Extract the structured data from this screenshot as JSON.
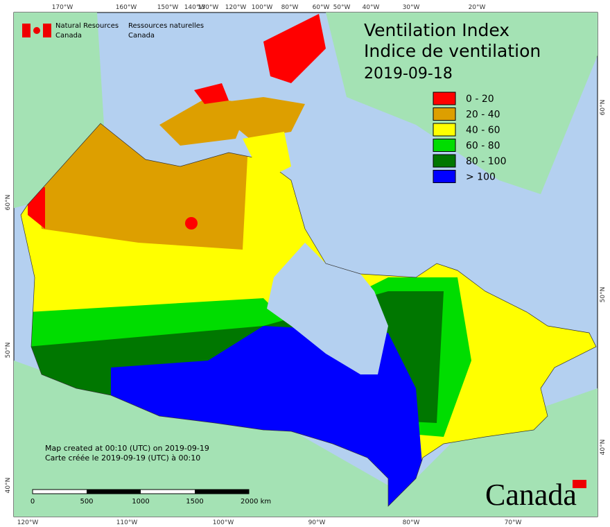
{
  "header": {
    "title": "Ventilation Index",
    "subtitle": "Indice de ventilation",
    "date": "2019-09-18"
  },
  "legend": [
    {
      "label": "0 - 20",
      "color": "#ff0000"
    },
    {
      "label": "20 - 40",
      "color": "#dd9f00"
    },
    {
      "label": "40 - 60",
      "color": "#ffff00"
    },
    {
      "label": "60 - 80",
      "color": "#00dd00"
    },
    {
      "label": "80 - 100",
      "color": "#007700"
    },
    {
      "label": "> 100",
      "color": "#0000ff"
    }
  ],
  "graticule": {
    "top": [
      "170°W",
      "160°W",
      "150°W",
      "140°W",
      "130°W",
      "120°W",
      "100°W",
      "80°W",
      "60°W",
      "50°W",
      "40°W",
      "30°W",
      "20°W"
    ],
    "bottom": [
      "120°W",
      "110°W",
      "100°W",
      "90°W",
      "80°W",
      "70°W"
    ],
    "left": [
      "60°N",
      "50°N",
      "40°N"
    ],
    "right": [
      "60°N",
      "50°N",
      "40°N"
    ]
  },
  "credits": {
    "en_1": "Natural Resources",
    "en_2": "Canada",
    "fr_1": "Ressources naturelles",
    "fr_2": "Canada"
  },
  "notes": [
    "Map created at 00:10 (UTC) on 2019-09-19",
    "Carte créée le 2019-09-19 (UTC) à 00:10"
  ],
  "scale_bar": [
    "0",
    "500",
    "1000",
    "1500",
    "2000 km"
  ],
  "wordmark": "Canada"
}
